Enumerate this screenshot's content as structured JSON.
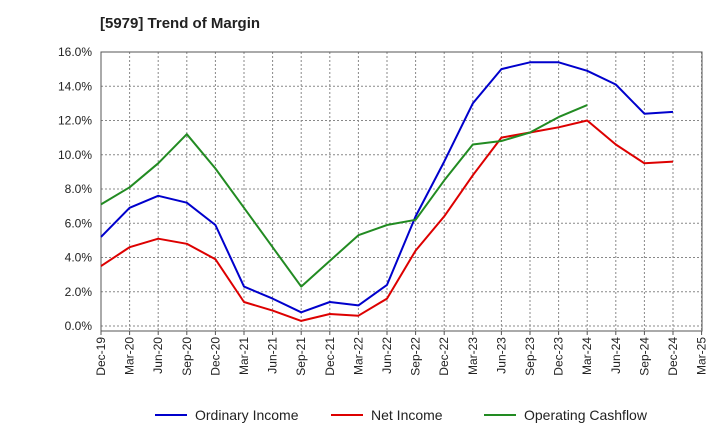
{
  "title": "[5979]  Trend of Margin",
  "chart_data": {
    "type": "line",
    "title": "[5979]  Trend of Margin",
    "xlabel": "",
    "ylabel": "",
    "ylim": [
      0,
      16
    ],
    "yticks": [
      "0.0%",
      "2.0%",
      "4.0%",
      "6.0%",
      "8.0%",
      "10.0%",
      "12.0%",
      "14.0%",
      "16.0%"
    ],
    "categories": [
      "Dec-19",
      "Mar-20",
      "Jun-20",
      "Sep-20",
      "Dec-20",
      "Mar-21",
      "Jun-21",
      "Sep-21",
      "Dec-21",
      "Mar-22",
      "Jun-22",
      "Sep-22",
      "Dec-22",
      "Mar-23",
      "Jun-23",
      "Sep-23",
      "Dec-23",
      "Mar-24",
      "Jun-24",
      "Sep-24",
      "Dec-24",
      "Mar-25"
    ],
    "grid": true,
    "legend_position": "bottom",
    "series": [
      {
        "name": "Ordinary Income",
        "color": "#0000cc",
        "values": [
          5.2,
          6.9,
          7.6,
          7.2,
          5.9,
          2.3,
          1.6,
          0.8,
          1.4,
          1.2,
          2.4,
          6.4,
          9.6,
          13.0,
          15.0,
          15.4,
          15.4,
          14.9,
          14.1,
          12.4,
          12.5,
          null
        ]
      },
      {
        "name": "Net Income",
        "color": "#dd0000",
        "values": [
          3.5,
          4.6,
          5.1,
          4.8,
          3.9,
          1.4,
          0.9,
          0.3,
          0.7,
          0.6,
          1.6,
          4.4,
          6.4,
          8.8,
          11.0,
          11.3,
          11.6,
          12.0,
          10.6,
          9.5,
          9.6,
          null
        ]
      },
      {
        "name": "Operating Cashflow",
        "color": "#228b22",
        "values": [
          7.1,
          8.1,
          9.5,
          11.2,
          9.2,
          6.9,
          4.6,
          2.3,
          3.8,
          5.3,
          5.9,
          6.2,
          8.5,
          10.6,
          10.8,
          11.3,
          12.2,
          12.9,
          null,
          null,
          null,
          null
        ]
      }
    ]
  }
}
